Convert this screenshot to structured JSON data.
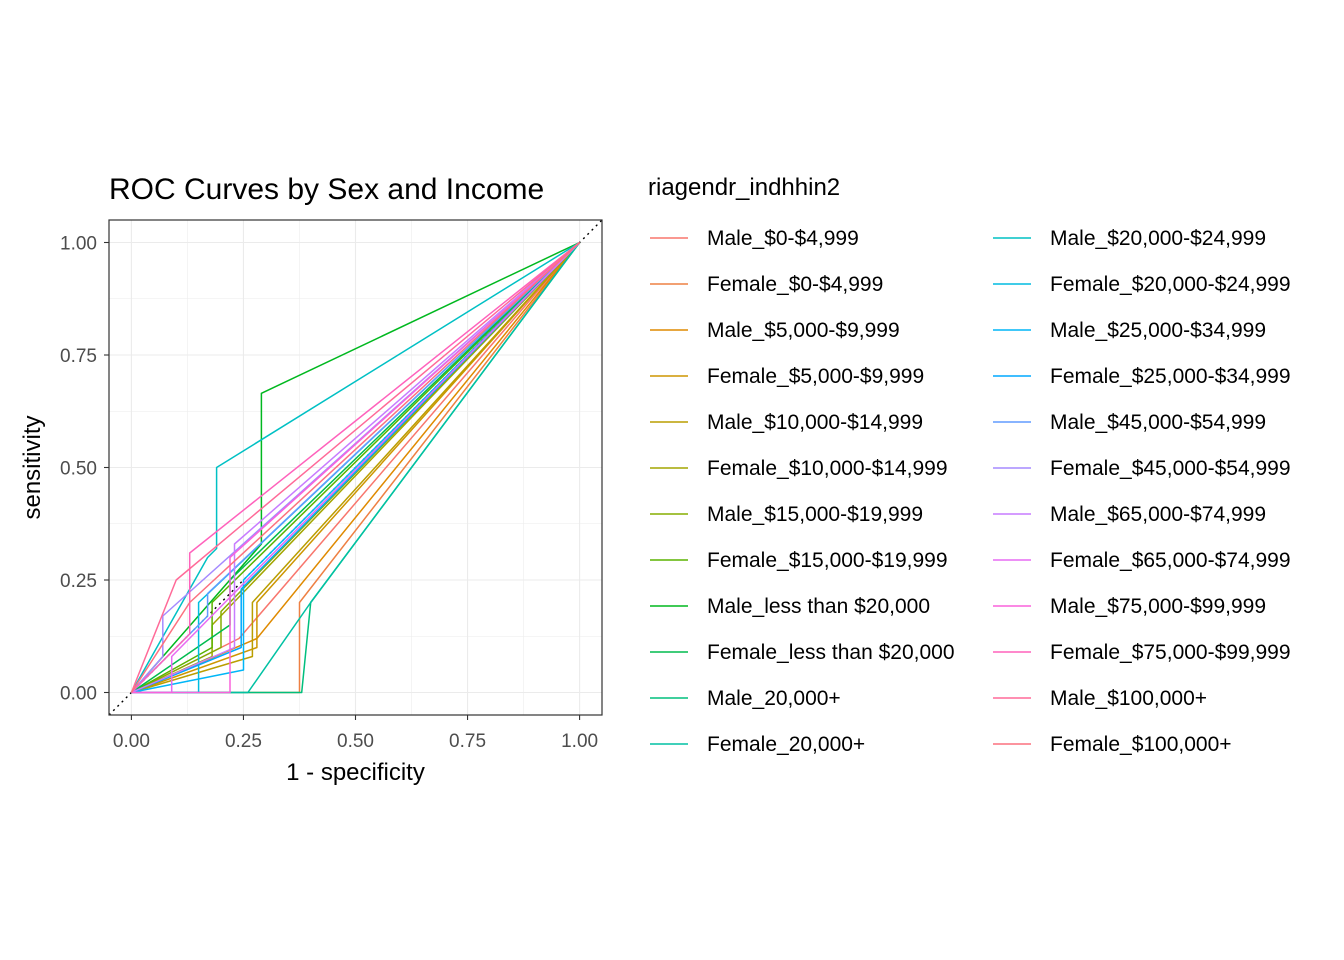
{
  "chart_data": {
    "type": "line",
    "title": "ROC Curves by Sex and Income",
    "xlabel": "1 - specificity",
    "ylabel": "sensitivity",
    "xlim": [
      -0.05,
      1.05
    ],
    "ylim": [
      -0.05,
      1.05
    ],
    "x_ticks": [
      "0.00",
      "0.25",
      "0.50",
      "0.75",
      "1.00"
    ],
    "y_ticks": [
      "0.00",
      "0.25",
      "0.50",
      "0.75",
      "1.00"
    ],
    "grid": true,
    "reference_line": "diagonal dotted",
    "legend": {
      "title": "riagendr_indhhin2",
      "placement": "right",
      "columns": 2
    },
    "series": [
      {
        "name": "Male_$0-$4,999",
        "color": "#F8766D",
        "x": [
          0,
          0.24,
          1
        ],
        "y": [
          0,
          0.12,
          1
        ]
      },
      {
        "name": "Female_$0-$4,999",
        "color": "#EE8043",
        "x": [
          0,
          0.375,
          0.375,
          1
        ],
        "y": [
          0,
          0,
          0.2,
          1
        ]
      },
      {
        "name": "Male_$5,000-$9,999",
        "color": "#DF8A00",
        "x": [
          0,
          0.28,
          1
        ],
        "y": [
          0,
          0.12,
          1
        ]
      },
      {
        "name": "Female_$5,000-$9,999",
        "color": "#CD9600",
        "x": [
          0,
          0.28,
          0.28,
          1
        ],
        "y": [
          0,
          0.1,
          0.2,
          1
        ]
      },
      {
        "name": "Male_$10,000-$14,999",
        "color": "#BA9E00",
        "x": [
          0,
          0.27,
          0.27,
          1
        ],
        "y": [
          0,
          0.08,
          0.2,
          1
        ]
      },
      {
        "name": "Female_$10,000-$14,999",
        "color": "#A3A500",
        "x": [
          0,
          0.18,
          0.18,
          1
        ],
        "y": [
          0,
          0.08,
          0.15,
          1
        ]
      },
      {
        "name": "Male_$15,000-$19,999",
        "color": "#85AD00",
        "x": [
          0,
          0.2,
          0.2,
          1
        ],
        "y": [
          0,
          0.1,
          0.18,
          1
        ]
      },
      {
        "name": "Female_$15,000-$19,999",
        "color": "#5BB300",
        "x": [
          0,
          0.18,
          0.18,
          1
        ],
        "y": [
          0,
          0.1,
          0.2,
          1
        ]
      },
      {
        "name": "Male_less than $20,000",
        "color": "#00B81F",
        "x": [
          0,
          0.29,
          0.29,
          1
        ],
        "y": [
          0,
          0.33,
          0.665,
          1
        ]
      },
      {
        "name": "Female_less than $20,000",
        "color": "#00BB4E",
        "x": [
          0,
          0.22,
          0.22,
          1
        ],
        "y": [
          0,
          0.15,
          0.25,
          1
        ]
      },
      {
        "name": "Male_20,000+",
        "color": "#00BF7D",
        "x": [
          0,
          0.38,
          0.4,
          1
        ],
        "y": [
          0,
          0,
          0.2,
          1
        ]
      },
      {
        "name": "Female_20,000+",
        "color": "#00C1A3",
        "x": [
          0,
          0.26,
          0.4,
          1
        ],
        "y": [
          0,
          0,
          0.2,
          1
        ]
      },
      {
        "name": "Male_$20,000-$24,999",
        "color": "#00C0C4",
        "x": [
          0,
          0.17,
          0.19,
          0.19,
          1
        ],
        "y": [
          0,
          0.3,
          0.32,
          0.5,
          1
        ]
      },
      {
        "name": "Female_$20,000-$24,999",
        "color": "#00BCE0",
        "x": [
          0,
          0.15,
          0.15,
          1
        ],
        "y": [
          0,
          0,
          0.2,
          1
        ]
      },
      {
        "name": "Male_$25,000-$34,999",
        "color": "#00B6F7",
        "x": [
          0,
          0.25,
          0.25,
          1
        ],
        "y": [
          0,
          0.05,
          0.25,
          1
        ]
      },
      {
        "name": "Female_$25,000-$34,999",
        "color": "#00A8FF",
        "x": [
          0,
          0.245,
          0.245,
          1
        ],
        "y": [
          0,
          0.1,
          0.23,
          1
        ]
      },
      {
        "name": "Male_$45,000-$54,999",
        "color": "#619CFF",
        "x": [
          0,
          0.17,
          0.17,
          1
        ],
        "y": [
          0,
          0.17,
          0.22,
          1
        ]
      },
      {
        "name": "Female_$45,000-$54,999",
        "color": "#A58AFF",
        "x": [
          0,
          0.07,
          0.07,
          1
        ],
        "y": [
          0,
          0.08,
          0.17,
          1
        ]
      },
      {
        "name": "Male_$65,000-$74,999",
        "color": "#C77CFF",
        "x": [
          0,
          0.23,
          0.23,
          1
        ],
        "y": [
          0,
          0.1,
          0.33,
          1
        ]
      },
      {
        "name": "Female_$65,000-$74,999",
        "color": "#E76BF3",
        "x": [
          0,
          0.09,
          0.09,
          1
        ],
        "y": [
          0,
          0,
          0.08,
          1
        ]
      },
      {
        "name": "Male_$75,000-$99,999",
        "color": "#FA62DB",
        "x": [
          0,
          0.22,
          0.22,
          1
        ],
        "y": [
          0,
          0,
          0.3,
          1
        ]
      },
      {
        "name": "Female_$75,000-$99,999",
        "color": "#FF62BC",
        "x": [
          0,
          0.13,
          0.13,
          1
        ],
        "y": [
          0,
          0.13,
          0.31,
          1
        ]
      },
      {
        "name": "Male_$100,000+",
        "color": "#FF6A98",
        "x": [
          0,
          0.1,
          1
        ],
        "y": [
          0,
          0.25,
          1
        ]
      },
      {
        "name": "Female_$100,000+",
        "color": "#FC717F",
        "x": [
          0,
          0.13,
          1
        ],
        "y": [
          0,
          0.2,
          1
        ]
      }
    ]
  }
}
